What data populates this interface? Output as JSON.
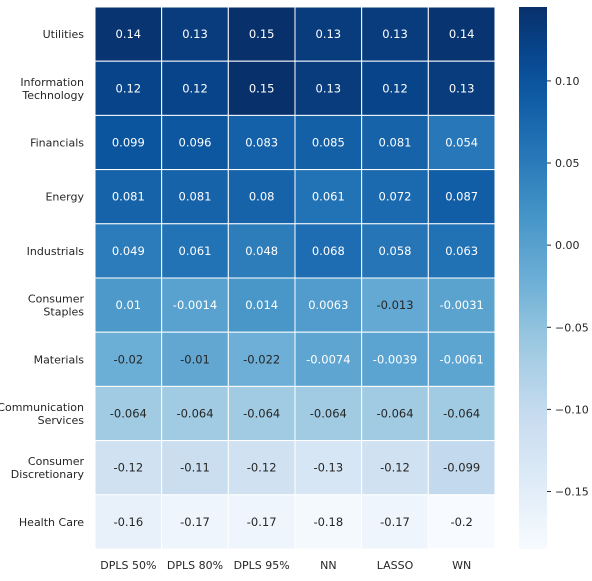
{
  "chart_data": {
    "type": "heatmap",
    "title": "",
    "xlabel": "",
    "ylabel": "",
    "columns": [
      "DPLS 50%",
      "DPLS 80%",
      "DPLS 95%",
      "NN",
      "LASSO",
      "WN"
    ],
    "rows": [
      [
        "Utilities"
      ],
      [
        "Information",
        "Technology"
      ],
      [
        "Financials"
      ],
      [
        "Energy"
      ],
      [
        "Industrials"
      ],
      [
        "Consumer",
        "Staples"
      ],
      [
        "Materials"
      ],
      [
        "Communication",
        "Services"
      ],
      [
        "Consumer",
        "Discretionary"
      ],
      [
        "Health Care"
      ]
    ],
    "values": [
      [
        0.14,
        0.13,
        0.15,
        0.13,
        0.13,
        0.14
      ],
      [
        0.12,
        0.12,
        0.15,
        0.13,
        0.12,
        0.13
      ],
      [
        0.099,
        0.096,
        0.083,
        0.085,
        0.081,
        0.054
      ],
      [
        0.081,
        0.081,
        0.08,
        0.061,
        0.072,
        0.087
      ],
      [
        0.049,
        0.061,
        0.048,
        0.068,
        0.058,
        0.063
      ],
      [
        0.01,
        -0.0014,
        0.014,
        0.0063,
        -0.013,
        -0.0031
      ],
      [
        -0.02,
        -0.01,
        -0.022,
        -0.0074,
        -0.0039,
        -0.0061
      ],
      [
        -0.064,
        -0.064,
        -0.064,
        -0.064,
        -0.064,
        -0.064
      ],
      [
        -0.12,
        -0.11,
        -0.12,
        -0.13,
        -0.12,
        -0.099
      ],
      [
        -0.16,
        -0.17,
        -0.17,
        -0.18,
        -0.17,
        -0.2
      ]
    ],
    "colorbar": {
      "ticks": [
        0.1,
        0.05,
        0.0,
        -0.05,
        -0.1,
        -0.15
      ],
      "tick_labels": [
        "0.10",
        "0.05",
        "0.00",
        "−0.05",
        "−0.10",
        "−0.15"
      ],
      "vmin": -0.185,
      "vmax": 0.145
    },
    "colormap": "Blues",
    "colors": {
      "low": "#f7fbff",
      "high": "#08306b"
    }
  }
}
